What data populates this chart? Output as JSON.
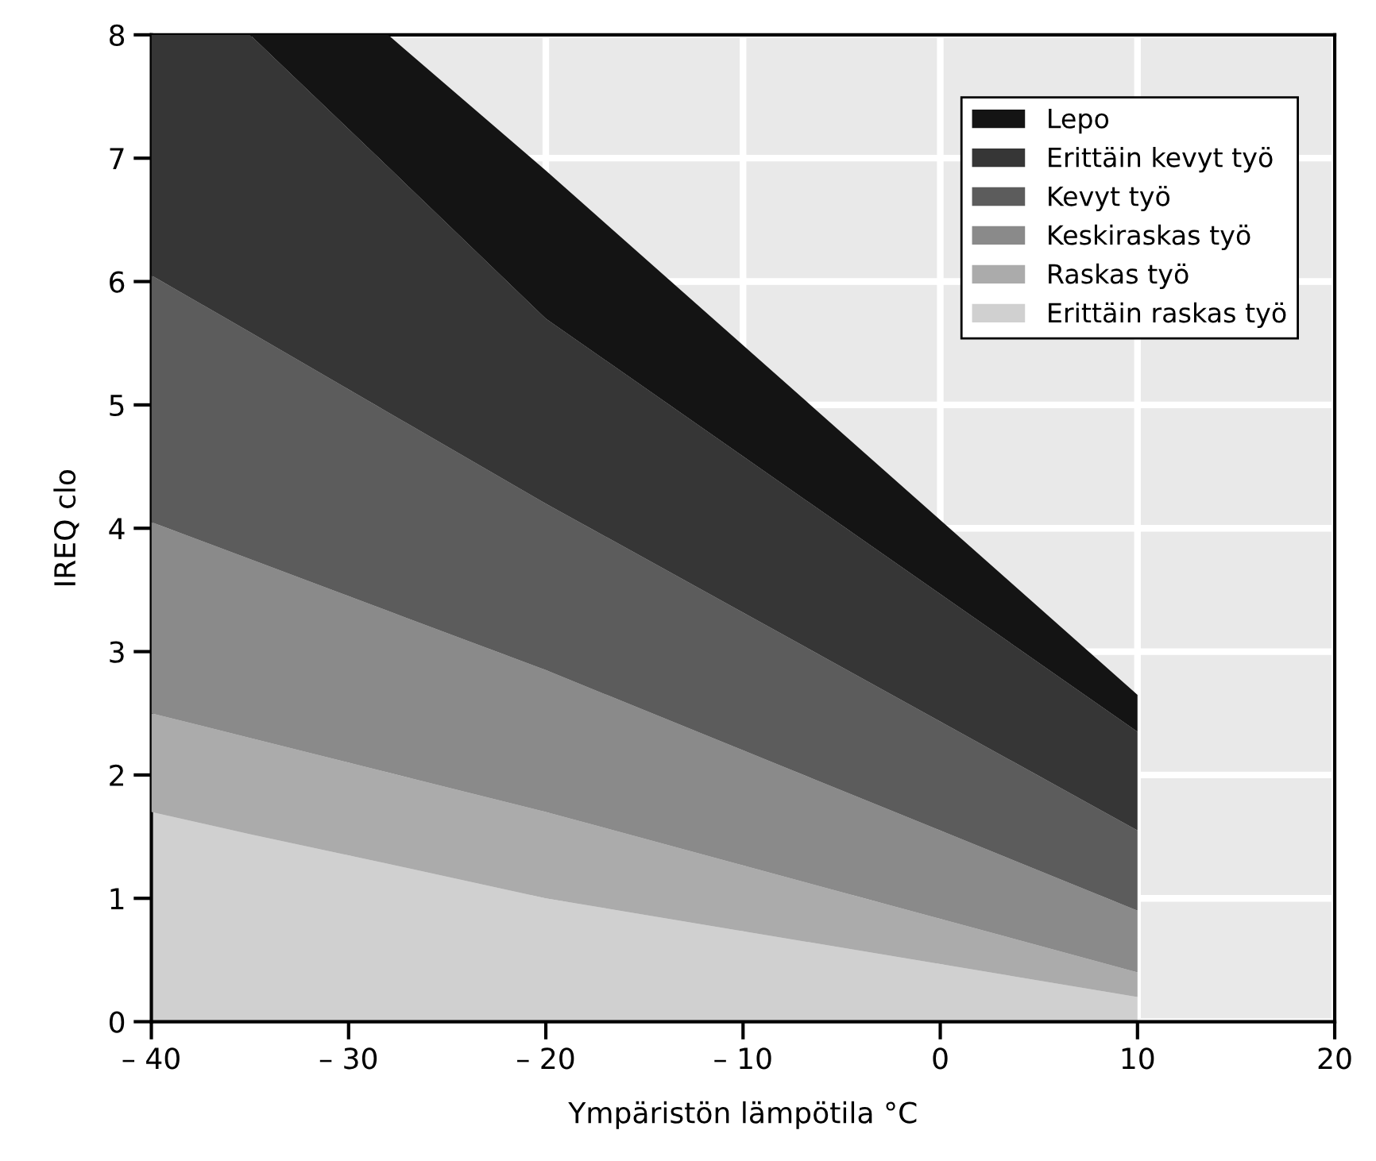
{
  "chart_data": {
    "type": "area",
    "stacked": true,
    "xlabel": "Ympäristön lämpötila °C",
    "ylabel": "IREQ clo",
    "x": [
      -40,
      -35,
      -28,
      -20,
      10
    ],
    "xlim": [
      -40,
      20
    ],
    "ylim": [
      0,
      8
    ],
    "xticks": [
      {
        "value": -40,
        "label": "– 40"
      },
      {
        "value": -30,
        "label": "– 30"
      },
      {
        "value": -20,
        "label": "– 20"
      },
      {
        "value": -10,
        "label": "– 10"
      },
      0,
      10,
      20
    ],
    "yticks": [
      0,
      1,
      2,
      3,
      4,
      5,
      6,
      7,
      8
    ],
    "grid": true,
    "legend": "top right",
    "series": [
      {
        "name": "Erittäin raskas työ",
        "color": "#d0d0d0",
        "values": [
          1.7,
          1.52,
          1.28,
          1.0,
          0.2
        ]
      },
      {
        "name": "Raskas työ",
        "color": "#ababab",
        "values": [
          0.8,
          0.78,
          0.74,
          0.7,
          0.2
        ]
      },
      {
        "name": "Keskiraskas työ",
        "color": "#8a8a8a",
        "values": [
          1.55,
          1.45,
          1.31,
          1.15,
          0.5
        ]
      },
      {
        "name": "Kevyt työ",
        "color": "#5c5c5c",
        "values": [
          2.0,
          1.84,
          1.61,
          1.35,
          0.65
        ]
      },
      {
        "name": "Erittäin kevyt työ",
        "color": "#363636",
        "values": [
          1.95,
          2.41,
          1.99,
          1.5,
          0.8
        ]
      },
      {
        "name": "Lepo",
        "color": "#141414",
        "values": [
          0,
          0,
          1.07,
          1.2,
          0.3
        ]
      }
    ]
  }
}
